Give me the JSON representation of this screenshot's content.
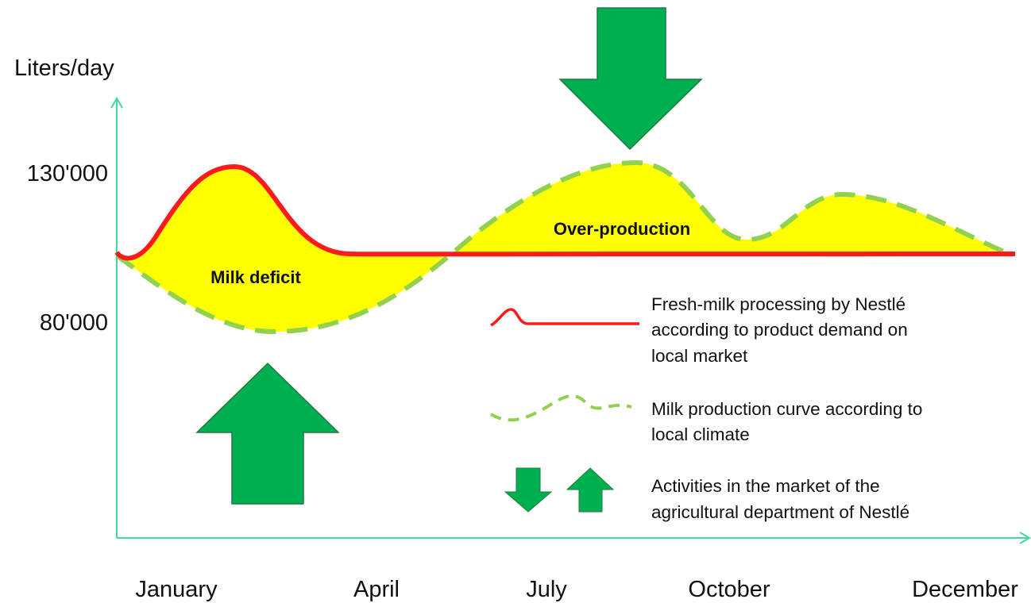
{
  "axis": {
    "y_label": "Liters/day",
    "y_ticks": [
      "130'000",
      "80'000"
    ],
    "x_labels": [
      "January",
      "April",
      "July",
      "October",
      "December"
    ]
  },
  "annotations": [
    "Milk deficit",
    "Over-production"
  ],
  "legend": [
    {
      "lines": [
        "Fresh-milk processing by Nestlé",
        "according to product demand on",
        "local market"
      ]
    },
    {
      "lines": [
        "Milk production curve according to",
        "local climate"
      ]
    },
    {
      "lines": [
        "Activities in the market of the",
        "agricultural department of Nestlé"
      ]
    }
  ]
}
